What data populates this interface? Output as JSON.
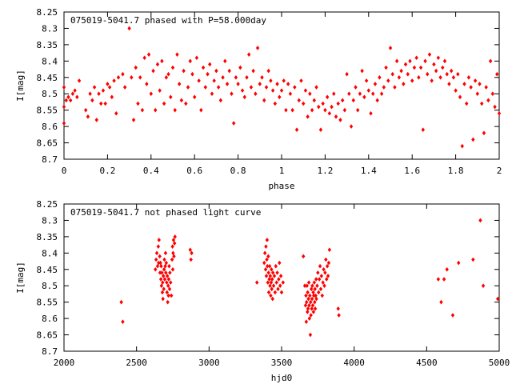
{
  "chart_data": [
    {
      "type": "scatter",
      "title": "075019-5041.7 phased with P=58.000day",
      "xlabel": "phase",
      "ylabel": "I[mag]",
      "xlim": [
        0,
        2
      ],
      "ylim": [
        8.25,
        8.7
      ],
      "y_inverted": true,
      "x_ticks": [
        "0",
        "0.2",
        "0.4",
        "0.6",
        "0.8",
        "1",
        "1.2",
        "1.4",
        "1.6",
        "1.8",
        "2"
      ],
      "y_ticks": [
        "8.25",
        "8.3",
        "8.35",
        "8.4",
        "8.45",
        "8.5",
        "8.55",
        "8.6",
        "8.65",
        "8.7"
      ],
      "grid": false,
      "color": "#ff0000",
      "points": [
        [
          0.0,
          8.48
        ],
        [
          0.0,
          8.54
        ],
        [
          0.0,
          8.59
        ],
        [
          0.01,
          8.52
        ],
        [
          0.02,
          8.51
        ],
        [
          0.03,
          8.52
        ],
        [
          0.04,
          8.5
        ],
        [
          0.05,
          8.49
        ],
        [
          0.06,
          8.51
        ],
        [
          0.07,
          8.46
        ],
        [
          0.1,
          8.55
        ],
        [
          0.11,
          8.57
        ],
        [
          0.12,
          8.5
        ],
        [
          0.13,
          8.52
        ],
        [
          0.14,
          8.48
        ],
        [
          0.15,
          8.58
        ],
        [
          0.16,
          8.5
        ],
        [
          0.17,
          8.53
        ],
        [
          0.18,
          8.49
        ],
        [
          0.19,
          8.53
        ],
        [
          0.2,
          8.47
        ],
        [
          0.21,
          8.48
        ],
        [
          0.22,
          8.51
        ],
        [
          0.23,
          8.46
        ],
        [
          0.24,
          8.56
        ],
        [
          0.25,
          8.45
        ],
        [
          0.27,
          8.44
        ],
        [
          0.28,
          8.48
        ],
        [
          0.3,
          8.3
        ],
        [
          0.31,
          8.45
        ],
        [
          0.32,
          8.58
        ],
        [
          0.33,
          8.42
        ],
        [
          0.34,
          8.53
        ],
        [
          0.35,
          8.45
        ],
        [
          0.36,
          8.55
        ],
        [
          0.37,
          8.39
        ],
        [
          0.38,
          8.47
        ],
        [
          0.39,
          8.38
        ],
        [
          0.4,
          8.5
        ],
        [
          0.41,
          8.43
        ],
        [
          0.42,
          8.55
        ],
        [
          0.43,
          8.41
        ],
        [
          0.44,
          8.49
        ],
        [
          0.45,
          8.4
        ],
        [
          0.46,
          8.53
        ],
        [
          0.47,
          8.45
        ],
        [
          0.48,
          8.44
        ],
        [
          0.49,
          8.51
        ],
        [
          0.5,
          8.42
        ],
        [
          0.51,
          8.55
        ],
        [
          0.52,
          8.38
        ],
        [
          0.53,
          8.47
        ],
        [
          0.54,
          8.52
        ],
        [
          0.55,
          8.43
        ],
        [
          0.56,
          8.53
        ],
        [
          0.57,
          8.48
        ],
        [
          0.58,
          8.4
        ],
        [
          0.59,
          8.44
        ],
        [
          0.6,
          8.51
        ],
        [
          0.61,
          8.39
        ],
        [
          0.62,
          8.46
        ],
        [
          0.63,
          8.55
        ],
        [
          0.64,
          8.42
        ],
        [
          0.65,
          8.48
        ],
        [
          0.66,
          8.44
        ],
        [
          0.67,
          8.41
        ],
        [
          0.68,
          8.5
        ],
        [
          0.69,
          8.46
        ],
        [
          0.7,
          8.43
        ],
        [
          0.71,
          8.48
        ],
        [
          0.72,
          8.52
        ],
        [
          0.73,
          8.45
        ],
        [
          0.74,
          8.4
        ],
        [
          0.75,
          8.47
        ],
        [
          0.76,
          8.43
        ],
        [
          0.77,
          8.5
        ],
        [
          0.78,
          8.59
        ],
        [
          0.79,
          8.45
        ],
        [
          0.8,
          8.47
        ],
        [
          0.81,
          8.42
        ],
        [
          0.82,
          8.49
        ],
        [
          0.83,
          8.51
        ],
        [
          0.84,
          8.45
        ],
        [
          0.85,
          8.38
        ],
        [
          0.86,
          8.48
        ],
        [
          0.87,
          8.43
        ],
        [
          0.88,
          8.5
        ],
        [
          0.89,
          8.36
        ],
        [
          0.9,
          8.47
        ],
        [
          0.91,
          8.45
        ],
        [
          0.92,
          8.52
        ],
        [
          0.93,
          8.48
        ],
        [
          0.94,
          8.43
        ],
        [
          0.95,
          8.46
        ],
        [
          0.96,
          8.49
        ],
        [
          0.97,
          8.53
        ],
        [
          0.98,
          8.47
        ],
        [
          0.99,
          8.51
        ],
        [
          1.0,
          8.49
        ],
        [
          1.01,
          8.46
        ],
        [
          1.02,
          8.55
        ],
        [
          1.03,
          8.47
        ],
        [
          1.04,
          8.5
        ],
        [
          1.05,
          8.55
        ],
        [
          1.06,
          8.48
        ],
        [
          1.07,
          8.61
        ],
        [
          1.08,
          8.52
        ],
        [
          1.09,
          8.46
        ],
        [
          1.1,
          8.53
        ],
        [
          1.11,
          8.49
        ],
        [
          1.12,
          8.57
        ],
        [
          1.13,
          8.5
        ],
        [
          1.14,
          8.55
        ],
        [
          1.15,
          8.52
        ],
        [
          1.16,
          8.48
        ],
        [
          1.17,
          8.54
        ],
        [
          1.18,
          8.61
        ],
        [
          1.19,
          8.53
        ],
        [
          1.2,
          8.55
        ],
        [
          1.21,
          8.51
        ],
        [
          1.22,
          8.56
        ],
        [
          1.23,
          8.54
        ],
        [
          1.24,
          8.5
        ],
        [
          1.25,
          8.57
        ],
        [
          1.26,
          8.53
        ],
        [
          1.27,
          8.58
        ],
        [
          1.28,
          8.52
        ],
        [
          1.29,
          8.55
        ],
        [
          1.3,
          8.44
        ],
        [
          1.31,
          8.5
        ],
        [
          1.32,
          8.6
        ],
        [
          1.33,
          8.52
        ],
        [
          1.34,
          8.48
        ],
        [
          1.35,
          8.55
        ],
        [
          1.36,
          8.5
        ],
        [
          1.37,
          8.43
        ],
        [
          1.38,
          8.51
        ],
        [
          1.39,
          8.46
        ],
        [
          1.4,
          8.49
        ],
        [
          1.41,
          8.56
        ],
        [
          1.42,
          8.5
        ],
        [
          1.43,
          8.47
        ],
        [
          1.44,
          8.52
        ],
        [
          1.45,
          8.45
        ],
        [
          1.46,
          8.5
        ],
        [
          1.47,
          8.48
        ],
        [
          1.48,
          8.42
        ],
        [
          1.49,
          8.46
        ],
        [
          1.5,
          8.36
        ],
        [
          1.51,
          8.44
        ],
        [
          1.52,
          8.48
        ],
        [
          1.53,
          8.4
        ],
        [
          1.54,
          8.45
        ],
        [
          1.55,
          8.43
        ],
        [
          1.56,
          8.47
        ],
        [
          1.57,
          8.41
        ],
        [
          1.58,
          8.44
        ],
        [
          1.59,
          8.4
        ],
        [
          1.6,
          8.46
        ],
        [
          1.61,
          8.42
        ],
        [
          1.62,
          8.39
        ],
        [
          1.63,
          8.45
        ],
        [
          1.64,
          8.42
        ],
        [
          1.65,
          8.61
        ],
        [
          1.66,
          8.4
        ],
        [
          1.67,
          8.44
        ],
        [
          1.68,
          8.38
        ],
        [
          1.69,
          8.46
        ],
        [
          1.7,
          8.41
        ],
        [
          1.71,
          8.43
        ],
        [
          1.72,
          8.39
        ],
        [
          1.73,
          8.45
        ],
        [
          1.74,
          8.42
        ],
        [
          1.75,
          8.4
        ],
        [
          1.76,
          8.44
        ],
        [
          1.77,
          8.47
        ],
        [
          1.78,
          8.43
        ],
        [
          1.79,
          8.45
        ],
        [
          1.8,
          8.49
        ],
        [
          1.81,
          8.44
        ],
        [
          1.82,
          8.51
        ],
        [
          1.83,
          8.66
        ],
        [
          1.84,
          8.47
        ],
        [
          1.85,
          8.53
        ],
        [
          1.86,
          8.45
        ],
        [
          1.87,
          8.48
        ],
        [
          1.88,
          8.64
        ],
        [
          1.89,
          8.46
        ],
        [
          1.9,
          8.5
        ],
        [
          1.91,
          8.47
        ],
        [
          1.92,
          8.53
        ],
        [
          1.93,
          8.62
        ],
        [
          1.94,
          8.48
        ],
        [
          1.95,
          8.52
        ],
        [
          1.96,
          8.4
        ],
        [
          1.97,
          8.5
        ],
        [
          1.98,
          8.54
        ],
        [
          1.99,
          8.44
        ],
        [
          2.0,
          8.56
        ]
      ]
    },
    {
      "type": "scatter",
      "title": "075019-5041.7 not phased light curve",
      "xlabel": "hjd0",
      "ylabel": "I[mag]",
      "xlim": [
        2000,
        5000
      ],
      "ylim": [
        8.25,
        8.7
      ],
      "y_inverted": true,
      "x_ticks": [
        "2000",
        "2500",
        "3000",
        "3500",
        "4000",
        "4500",
        "5000"
      ],
      "y_ticks": [
        "8.25",
        "8.3",
        "8.35",
        "8.4",
        "8.45",
        "8.5",
        "8.55",
        "8.6",
        "8.65",
        "8.7"
      ],
      "grid": false,
      "color": "#ff0000",
      "points": [
        [
          2395,
          8.55
        ],
        [
          2405,
          8.61
        ],
        [
          2630,
          8.45
        ],
        [
          2635,
          8.42
        ],
        [
          2640,
          8.4
        ],
        [
          2645,
          8.44
        ],
        [
          2650,
          8.38
        ],
        [
          2652,
          8.43
        ],
        [
          2655,
          8.36
        ],
        [
          2660,
          8.41
        ],
        [
          2662,
          8.46
        ],
        [
          2665,
          8.43
        ],
        [
          2668,
          8.48
        ],
        [
          2670,
          8.44
        ],
        [
          2672,
          8.5
        ],
        [
          2675,
          8.46
        ],
        [
          2678,
          8.52
        ],
        [
          2680,
          8.49
        ],
        [
          2682,
          8.54
        ],
        [
          2685,
          8.47
        ],
        [
          2688,
          8.51
        ],
        [
          2690,
          8.45
        ],
        [
          2692,
          8.42
        ],
        [
          2695,
          8.48
        ],
        [
          2698,
          8.44
        ],
        [
          2700,
          8.4
        ],
        [
          2702,
          8.46
        ],
        [
          2705,
          8.43
        ],
        [
          2708,
          8.49
        ],
        [
          2710,
          8.52
        ],
        [
          2712,
          8.47
        ],
        [
          2715,
          8.55
        ],
        [
          2718,
          8.5
        ],
        [
          2720,
          8.53
        ],
        [
          2722,
          8.48
        ],
        [
          2725,
          8.44
        ],
        [
          2728,
          8.51
        ],
        [
          2730,
          8.46
        ],
        [
          2735,
          8.49
        ],
        [
          2740,
          8.53
        ],
        [
          2745,
          8.42
        ],
        [
          2748,
          8.38
        ],
        [
          2750,
          8.45
        ],
        [
          2752,
          8.4
        ],
        [
          2755,
          8.36
        ],
        [
          2758,
          8.41
        ],
        [
          2762,
          8.37
        ],
        [
          2765,
          8.35
        ],
        [
          2870,
          8.39
        ],
        [
          2875,
          8.42
        ],
        [
          2880,
          8.4
        ],
        [
          3330,
          8.49
        ],
        [
          3380,
          8.43
        ],
        [
          3385,
          8.4
        ],
        [
          3390,
          8.45
        ],
        [
          3392,
          8.38
        ],
        [
          3395,
          8.47
        ],
        [
          3398,
          8.42
        ],
        [
          3400,
          8.36
        ],
        [
          3402,
          8.44
        ],
        [
          3405,
          8.49
        ],
        [
          3408,
          8.41
        ],
        [
          3410,
          8.46
        ],
        [
          3412,
          8.52
        ],
        [
          3415,
          8.48
        ],
        [
          3418,
          8.44
        ],
        [
          3420,
          8.5
        ],
        [
          3422,
          8.47
        ],
        [
          3425,
          8.53
        ],
        [
          3428,
          8.49
        ],
        [
          3430,
          8.45
        ],
        [
          3432,
          8.51
        ],
        [
          3435,
          8.48
        ],
        [
          3438,
          8.54
        ],
        [
          3440,
          8.46
        ],
        [
          3445,
          8.5
        ],
        [
          3450,
          8.47
        ],
        [
          3455,
          8.52
        ],
        [
          3460,
          8.44
        ],
        [
          3465,
          8.49
        ],
        [
          3470,
          8.46
        ],
        [
          3475,
          8.51
        ],
        [
          3480,
          8.48
        ],
        [
          3485,
          8.43
        ],
        [
          3490,
          8.5
        ],
        [
          3495,
          8.47
        ],
        [
          3500,
          8.52
        ],
        [
          3510,
          8.49
        ],
        [
          3650,
          8.41
        ],
        [
          3660,
          8.5
        ],
        [
          3665,
          8.56
        ],
        [
          3668,
          8.53
        ],
        [
          3670,
          8.61
        ],
        [
          3672,
          8.55
        ],
        [
          3675,
          8.5
        ],
        [
          3678,
          8.58
        ],
        [
          3680,
          8.52
        ],
        [
          3682,
          8.57
        ],
        [
          3685,
          8.54
        ],
        [
          3688,
          8.49
        ],
        [
          3690,
          8.56
        ],
        [
          3692,
          8.6
        ],
        [
          3695,
          8.53
        ],
        [
          3698,
          8.65
        ],
        [
          3700,
          8.55
        ],
        [
          3702,
          8.59
        ],
        [
          3705,
          8.51
        ],
        [
          3708,
          8.57
        ],
        [
          3710,
          8.54
        ],
        [
          3712,
          8.5
        ],
        [
          3715,
          8.56
        ],
        [
          3718,
          8.52
        ],
        [
          3720,
          8.58
        ],
        [
          3722,
          8.53
        ],
        [
          3725,
          8.49
        ],
        [
          3728,
          8.55
        ],
        [
          3730,
          8.51
        ],
        [
          3732,
          8.57
        ],
        [
          3735,
          8.53
        ],
        [
          3738,
          8.48
        ],
        [
          3740,
          8.54
        ],
        [
          3745,
          8.5
        ],
        [
          3750,
          8.46
        ],
        [
          3755,
          8.52
        ],
        [
          3760,
          8.48
        ],
        [
          3765,
          8.44
        ],
        [
          3770,
          8.51
        ],
        [
          3775,
          8.47
        ],
        [
          3780,
          8.53
        ],
        [
          3785,
          8.49
        ],
        [
          3790,
          8.45
        ],
        [
          3795,
          8.5
        ],
        [
          3800,
          8.46
        ],
        [
          3805,
          8.42
        ],
        [
          3810,
          8.48
        ],
        [
          3815,
          8.44
        ],
        [
          3820,
          8.47
        ],
        [
          3825,
          8.43
        ],
        [
          3830,
          8.39
        ],
        [
          3890,
          8.57
        ],
        [
          3895,
          8.59
        ],
        [
          4580,
          8.48
        ],
        [
          4600,
          8.55
        ],
        [
          4620,
          8.48
        ],
        [
          4640,
          8.45
        ],
        [
          4680,
          8.59
        ],
        [
          4720,
          8.43
        ],
        [
          4820,
          8.42
        ],
        [
          4870,
          8.3
        ],
        [
          4890,
          8.5
        ],
        [
          4990,
          8.54
        ]
      ]
    }
  ]
}
